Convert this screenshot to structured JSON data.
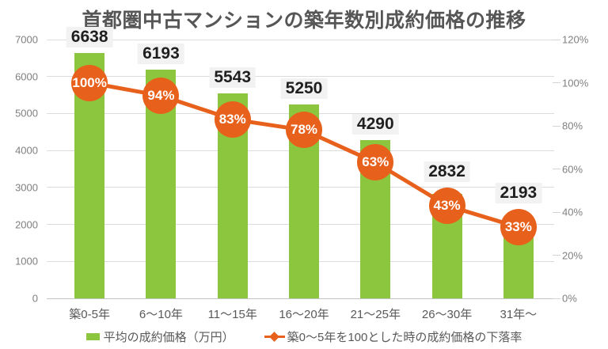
{
  "title": "首都圏中古マンションの築年数別成約価格の推移",
  "colors": {
    "bar": "#8cc63e",
    "line": "#e8611c",
    "marker_fill": "#e8611c",
    "marker_text": "#ffffff",
    "value_label_bg": "#f2f2f2",
    "value_label_text": "#1f1f1f",
    "title_text": "#565656",
    "axis_text": "#808080",
    "category_text": "#595959",
    "gridline": "#dcdcdc"
  },
  "chart_data": {
    "type": "bar",
    "combo": "bar+line, dual axis",
    "title": "首都圏中古マンションの築年数別成約価格の推移",
    "categories": [
      "築0-5年",
      "6〜10年",
      "11〜15年",
      "16〜20年",
      "21〜25年",
      "26〜30年",
      "31年〜"
    ],
    "series": [
      {
        "name": "平均の成約価格（万円）",
        "type": "bar",
        "axis": "left",
        "values": [
          6638,
          6193,
          5543,
          5250,
          4290,
          2832,
          2193
        ]
      },
      {
        "name": "築0〜5年を100とした時の成約価格の下落率",
        "type": "line",
        "axis": "right",
        "unit": "%",
        "values": [
          100,
          94,
          83,
          78,
          63,
          43,
          33
        ],
        "point_labels": [
          "100%",
          "94%",
          "83%",
          "78%",
          "63%",
          "43%",
          "33%"
        ]
      }
    ],
    "left_axis": {
      "min": 0,
      "max": 7000,
      "step": 1000,
      "tick_values": [
        0,
        1000,
        2000,
        3000,
        4000,
        5000,
        6000,
        7000
      ]
    },
    "right_axis": {
      "min": 0,
      "max": 120,
      "step": 20,
      "unit": "%",
      "tick_values": [
        0,
        20,
        40,
        60,
        80,
        100,
        120
      ]
    },
    "grid": true,
    "legend_position": "bottom"
  },
  "legend": {
    "bar_label": "平均の成約価格（万円）",
    "line_label": "築0〜5年を100とした時の成約価格の下落率"
  }
}
